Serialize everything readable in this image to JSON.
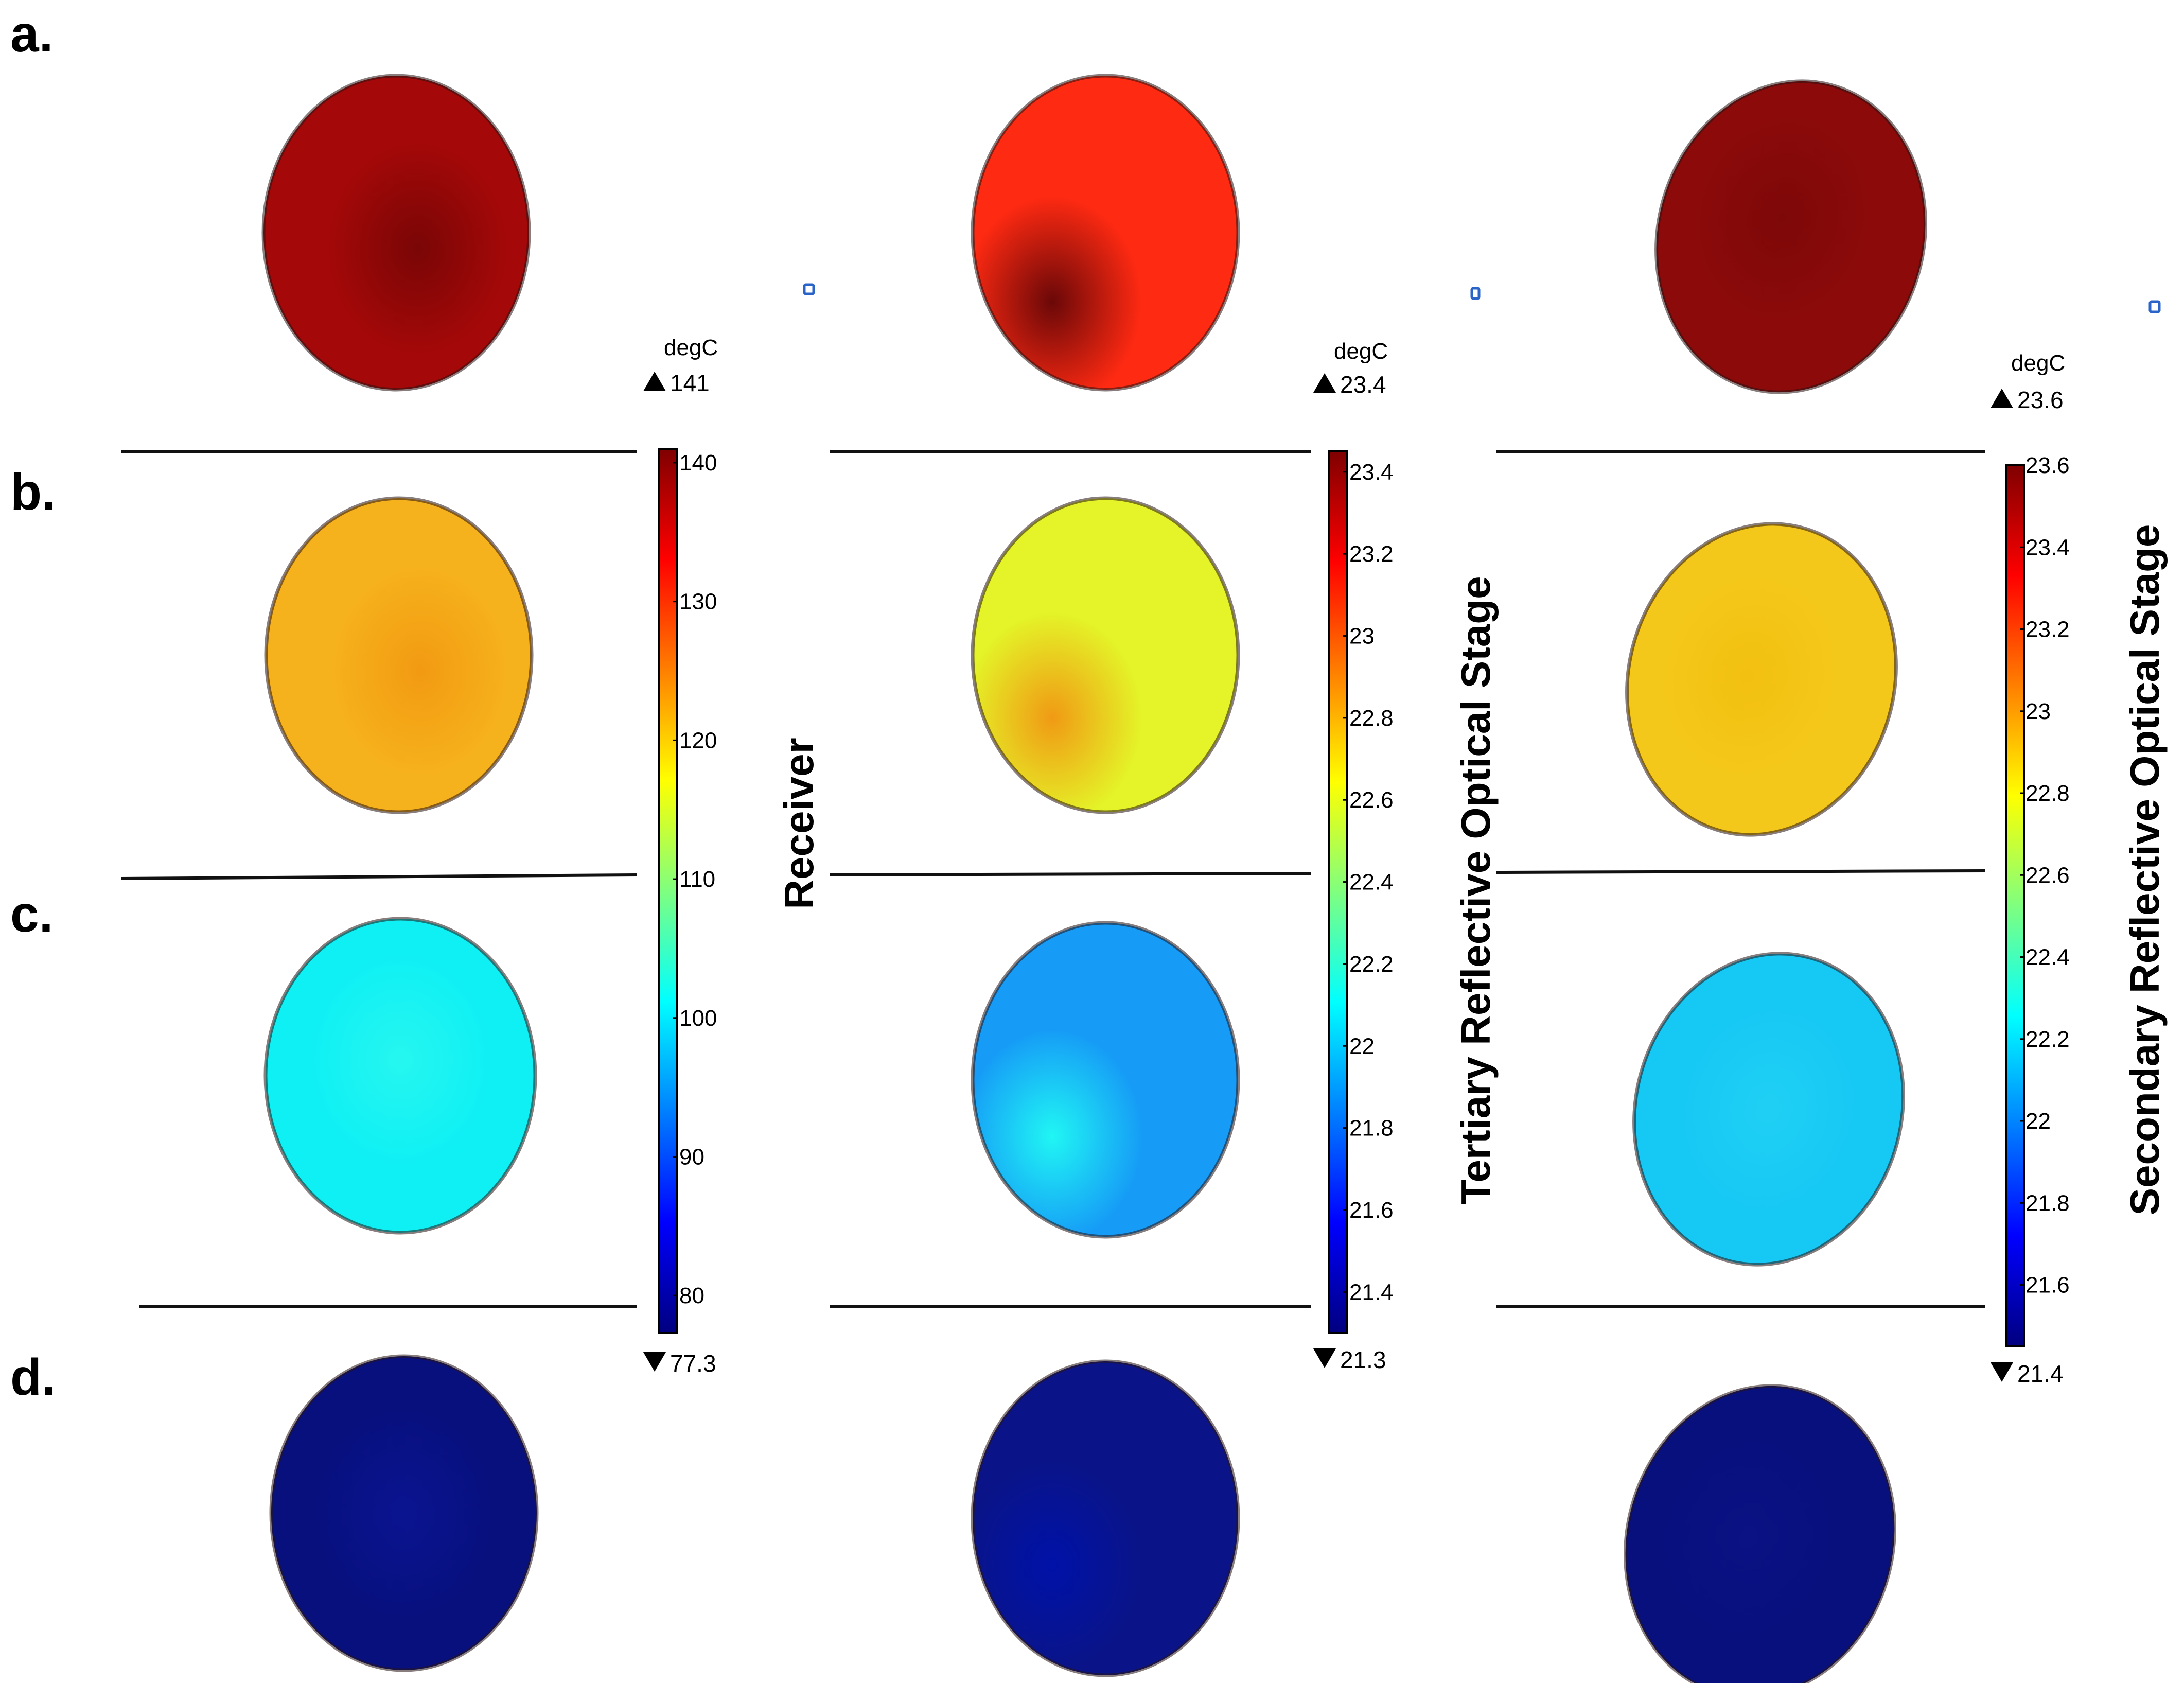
{
  "row_labels": [
    "a.",
    "b.",
    "c.",
    "d."
  ],
  "columns": [
    {
      "title": "Receiver",
      "unit": "degC",
      "max_label": "141",
      "min_label": "77.3",
      "ticks": [
        "140",
        "130",
        "120",
        "110",
        "100",
        "90",
        "80"
      ],
      "tick_values": [
        140,
        130,
        120,
        110,
        100,
        90,
        80
      ],
      "range": [
        77.3,
        141
      ]
    },
    {
      "title": "Tertiary Reflective Optical Stage",
      "unit": "degC",
      "max_label": "23.4",
      "min_label": "21.3",
      "ticks": [
        "23.4",
        "23.2",
        "23",
        "22.8",
        "22.6",
        "22.4",
        "22.2",
        "22",
        "21.8",
        "21.6",
        "21.4"
      ],
      "tick_values": [
        23.4,
        23.2,
        23.0,
        22.8,
        22.6,
        22.4,
        22.2,
        22.0,
        21.8,
        21.6,
        21.4
      ],
      "range": [
        21.3,
        23.45
      ]
    },
    {
      "title": "Secondary Reflective Optical Stage",
      "unit": "degC",
      "max_label": "23.6",
      "min_label": "21.4",
      "ticks": [
        "23.6",
        "23.4",
        "23.2",
        "23",
        "22.8",
        "22.6",
        "22.4",
        "22.2",
        "22",
        "21.8",
        "21.6"
      ],
      "tick_values": [
        23.6,
        23.4,
        23.2,
        23.0,
        22.8,
        22.6,
        22.4,
        22.2,
        22.0,
        21.8,
        21.6
      ],
      "range": [
        21.45,
        23.6
      ]
    }
  ],
  "colors": {
    "colormap": [
      "#00007f",
      "#0000ff",
      "#007fff",
      "#00ffff",
      "#7fff7f",
      "#ffff00",
      "#ff7f00",
      "#ff0000",
      "#7f0000"
    ],
    "discs": [
      [
        "#a40808",
        "#ff2a12",
        "#8c0a0a"
      ],
      [
        "#f6b21c",
        "#e4f428",
        "#f4c81a"
      ],
      [
        "#0ff0f4",
        "#169cf6",
        "#16c8f4"
      ],
      [
        "#08107e",
        "#0a1488",
        "#08107e"
      ]
    ],
    "hotspots": [
      [
        "#7a0606",
        "#6a0808",
        "#7e0808"
      ],
      [
        "#f29a12",
        "#f09a14",
        "#f2c010"
      ],
      [
        "#26f6f0",
        "#20f6f4",
        "#20d0f4"
      ],
      [
        "#0a1490",
        "#0012a8",
        "#0a1284"
      ]
    ]
  }
}
